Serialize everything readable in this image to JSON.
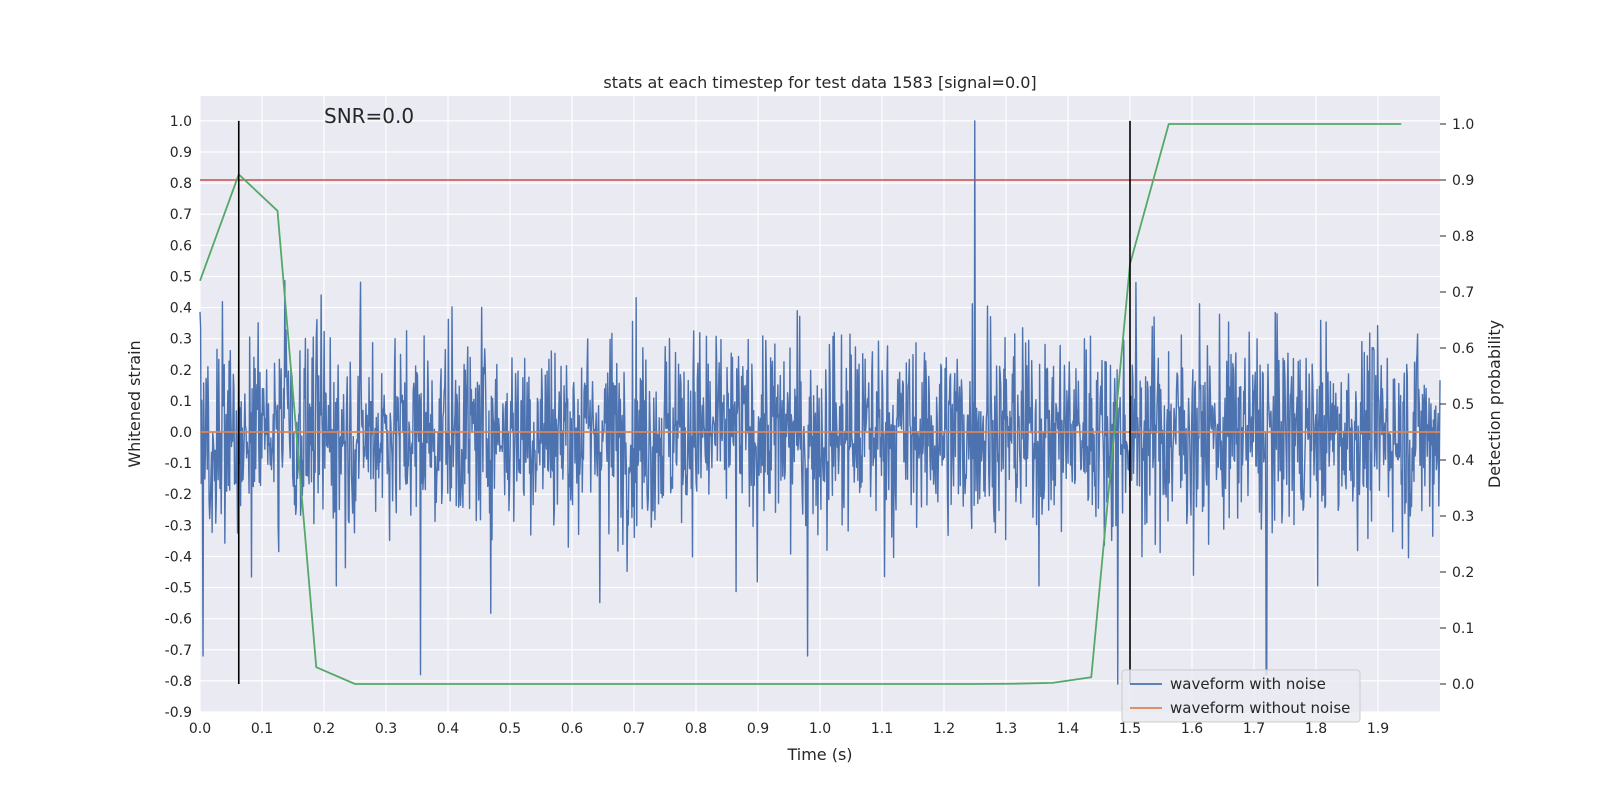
{
  "chart_data": {
    "type": "line",
    "title": "stats at each timestep for test data 1583 [signal=0.0]",
    "xlabel": "Time (s)",
    "ylabel": "Whitened strain",
    "y2label": "Detection probability",
    "annotation": "SNR=0.0",
    "xlim": [
      0.0,
      2.0
    ],
    "ylim": [
      -0.9,
      1.08
    ],
    "y2lim": [
      -0.05,
      1.05
    ],
    "xticks": [
      "0.0",
      "0.1",
      "0.2",
      "0.3",
      "0.4",
      "0.5",
      "0.6",
      "0.7",
      "0.8",
      "0.9",
      "1.0",
      "1.1",
      "1.2",
      "1.3",
      "1.4",
      "1.5",
      "1.6",
      "1.7",
      "1.8",
      "1.9"
    ],
    "yticks": [
      "1.0",
      "0.9",
      "0.8",
      "0.7",
      "0.6",
      "0.5",
      "0.4",
      "0.3",
      "0.2",
      "0.1",
      "0.0",
      "-0.1",
      "-0.2",
      "-0.3",
      "-0.4",
      "-0.5",
      "-0.6",
      "-0.7",
      "-0.8",
      "-0.9"
    ],
    "y2ticks": [
      "1.0",
      "0.9",
      "0.8",
      "0.7",
      "0.6",
      "0.5",
      "0.4",
      "0.3",
      "0.2",
      "0.1",
      "0.0"
    ],
    "grid": true,
    "legend_position": "bottom-right",
    "series": [
      {
        "name": "waveform with noise",
        "color": "#4c72b0",
        "axis": "left",
        "description": "dense noise trace spanning the full time range, mostly within -0.6..0.65, peak near t=1.25 reaching 1.0",
        "sample_count": 2048,
        "notable_points": [
          {
            "x": 1.25,
            "y": 1.0
          },
          {
            "x": 0.356,
            "y": -0.78
          },
          {
            "x": 1.48,
            "y": -0.81
          },
          {
            "x": 1.72,
            "y": -0.78
          },
          {
            "x": 0.98,
            "y": -0.72
          },
          {
            "x": 0.005,
            "y": -0.72
          }
        ]
      },
      {
        "name": "waveform without noise",
        "color": "#dd8452",
        "axis": "left",
        "x": [
          0.0,
          2.0
        ],
        "y": [
          0.0,
          0.0
        ]
      },
      {
        "color": "#55a868",
        "axis": "right",
        "x": [
          0.0,
          0.0625,
          0.125,
          0.1875,
          0.25,
          0.3125,
          0.375,
          0.4375,
          0.5,
          0.5625,
          0.625,
          0.6875,
          0.75,
          0.8125,
          0.875,
          0.9375,
          1.0,
          1.0625,
          1.125,
          1.1875,
          1.25,
          1.3125,
          1.375,
          1.4375,
          1.5,
          1.5625,
          1.625,
          1.6875,
          1.75,
          1.8125,
          1.875,
          1.9375
        ],
        "y": [
          0.72,
          0.91,
          0.845,
          0.03,
          0.0,
          0.0,
          0.0,
          0.0,
          0.0,
          0.0,
          0.0,
          0.0,
          0.0,
          0.0,
          0.0,
          0.0,
          0.0,
          0.0,
          0.0,
          0.0,
          0.0,
          0.0005,
          0.002,
          0.012,
          0.75,
          1.0,
          1.0,
          1.0,
          1.0,
          1.0,
          1.0,
          1.0
        ]
      },
      {
        "color": "#c44e52",
        "axis": "right",
        "x": [
          0.0,
          2.0
        ],
        "y": [
          0.9,
          0.9
        ]
      }
    ],
    "vertical_lines": [
      {
        "x": 0.0625,
        "y_from": -0.81,
        "y_to": 1.0,
        "color": "#000000"
      },
      {
        "x": 1.5,
        "y_from": -0.81,
        "y_to": 1.0,
        "color": "#000000"
      }
    ]
  }
}
